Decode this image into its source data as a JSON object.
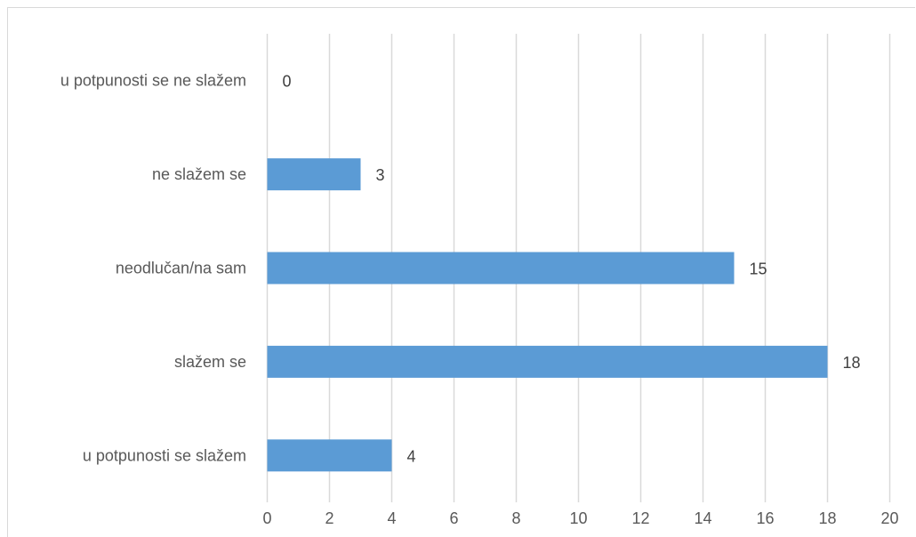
{
  "chart_data": {
    "type": "bar",
    "orientation": "horizontal",
    "categories": [
      "u potpunosti se ne slažem",
      "ne slažem se",
      "neodlučan/na sam",
      "slažem se",
      "u potpunosti se slažem"
    ],
    "values": [
      0,
      3,
      15,
      18,
      4
    ],
    "xlim": [
      0,
      20
    ],
    "xticks": [
      0,
      2,
      4,
      6,
      8,
      10,
      12,
      14,
      16,
      18,
      20
    ],
    "grid": "vertical",
    "data_labels": true,
    "legend": "none",
    "colors": {
      "bar": "#5b9bd5",
      "grid": "#d9d9d9",
      "text": "#595959"
    }
  }
}
